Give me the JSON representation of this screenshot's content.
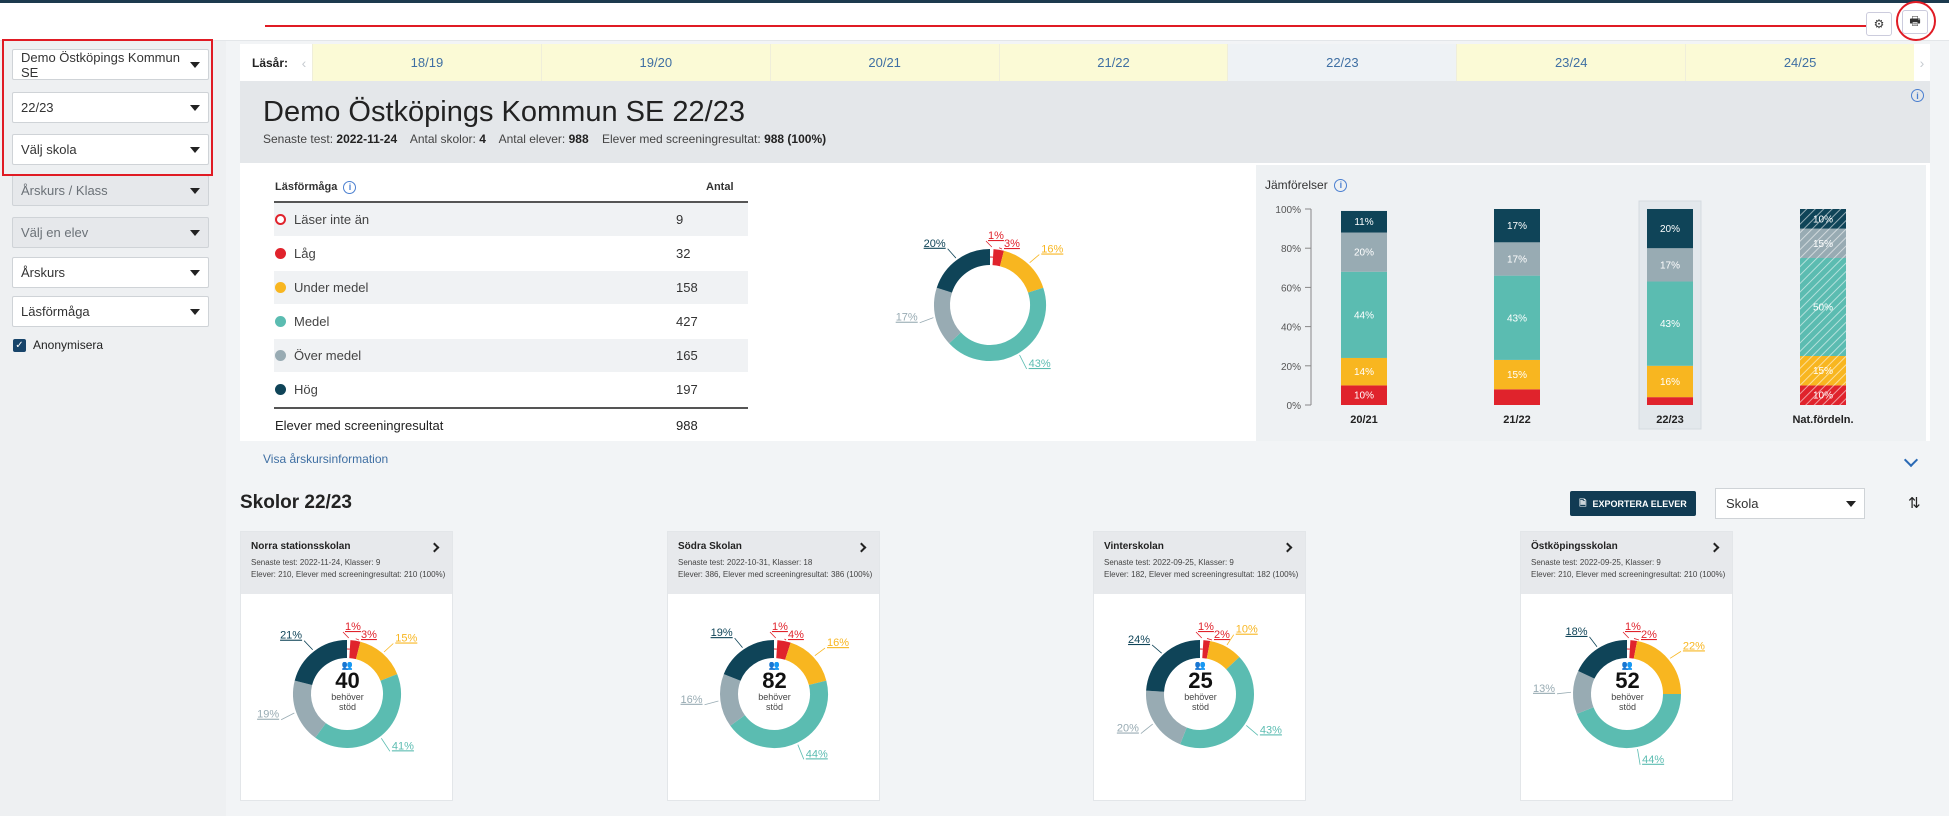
{
  "sidebar": {
    "kommun": "Demo Östköpings Kommun SE",
    "year": "22/23",
    "school": "Välj skola",
    "class": "Årskurs / Klass",
    "student": "Välj en elev",
    "grade": "Årskurs",
    "ability": "Läsförmåga",
    "anonymize": "Anonymisera"
  },
  "years": {
    "label": "Läsår:",
    "items": [
      "18/19",
      "19/20",
      "20/21",
      "21/22",
      "22/23",
      "23/24",
      "24/25"
    ],
    "selected": "22/23"
  },
  "header": {
    "title": "Demo Östköpings Kommun SE 22/23",
    "k1": "Senaste test:",
    "v1": "2022-11-24",
    "k2": "Antal skolor:",
    "v2": "4",
    "k3": "Antal elever:",
    "v3": "988",
    "k4": "Elever med screeningresultat:",
    "v4": "988 (100%)"
  },
  "table": {
    "h1": "Läsförmåga",
    "h2": "Antal",
    "rows": [
      {
        "label": "Läser inte än",
        "value": "9"
      },
      {
        "label": "Låg",
        "value": "32"
      },
      {
        "label": "Under medel",
        "value": "158"
      },
      {
        "label": "Medel",
        "value": "427"
      },
      {
        "label": "Över medel",
        "value": "165"
      },
      {
        "label": "Hög",
        "value": "197"
      }
    ],
    "total_label": "Elever med screeningresultat",
    "total_value": "988"
  },
  "colors": {
    "notyet": "#ffffff",
    "notyet_border": "#e0232c",
    "low": "#e0232c",
    "under": "#f8b620",
    "medel": "#5bbcb1",
    "over": "#98abb3",
    "high": "#0f4458"
  },
  "donut_main": {
    "values": [
      1,
      3,
      16,
      43,
      17,
      20
    ],
    "labels": [
      "1%",
      "3%",
      "16%",
      "43%",
      "17%",
      "20%"
    ]
  },
  "compare": {
    "title": "Jämförelser",
    "yticks": [
      "100%",
      "80%",
      "60%",
      "40%",
      "20%",
      "0%"
    ],
    "categories": [
      "20/21",
      "21/22",
      "22/23",
      "Nat.fördeln."
    ],
    "selected": "22/23"
  },
  "chart_data": {
    "type": "bar",
    "stacked": true,
    "categories": [
      "20/21",
      "21/22",
      "22/23",
      "Nat.fördeln."
    ],
    "ylim": [
      0,
      100
    ],
    "series": [
      {
        "name": "Låg",
        "values": [
          10,
          8,
          4,
          10
        ],
        "labels": [
          "10%",
          "",
          "",
          "10%"
        ]
      },
      {
        "name": "Under medel",
        "values": [
          14,
          15,
          16,
          15
        ],
        "labels": [
          "14%",
          "15%",
          "16%",
          "15%"
        ]
      },
      {
        "name": "Medel",
        "values": [
          44,
          43,
          43,
          50
        ],
        "labels": [
          "44%",
          "43%",
          "43%",
          "50%"
        ]
      },
      {
        "name": "Över medel",
        "values": [
          20,
          17,
          17,
          15
        ],
        "labels": [
          "20%",
          "17%",
          "17%",
          "15%"
        ]
      },
      {
        "name": "Hög",
        "values": [
          11,
          17,
          20,
          10
        ],
        "labels": [
          "11%",
          "17%",
          "20%",
          "10%"
        ]
      }
    ]
  },
  "link": "Visa årskursinformation",
  "schools_title": "Skolor 22/23",
  "export_label": "EXPORTERA ELEVER",
  "sort_select": "Skola",
  "schools": [
    {
      "name": "Norra stationsskolan",
      "line1": "Senaste test: 2022-11-24, Klasser: 9",
      "line2": "Elever: 210, Elever med screeningresultat: 210 (100%)",
      "count": "40",
      "needs": "behöver",
      "stod": "stöd",
      "values": [
        1,
        3,
        15,
        41,
        19,
        21
      ],
      "labels": [
        "1%",
        "3%",
        "15%",
        "41%",
        "19%",
        "21%"
      ]
    },
    {
      "name": "Södra Skolan",
      "line1": "Senaste test: 2022-10-31, Klasser: 18",
      "line2": "Elever: 386, Elever med screeningresultat: 386 (100%)",
      "count": "82",
      "needs": "behöver",
      "stod": "stöd",
      "values": [
        1,
        4,
        16,
        44,
        16,
        19
      ],
      "labels": [
        "1%",
        "4%",
        "16%",
        "44%",
        "16%",
        "19%"
      ]
    },
    {
      "name": "Vinterskolan",
      "line1": "Senaste test: 2022-09-25, Klasser: 9",
      "line2": "Elever: 182, Elever med screeningresultat: 182 (100%)",
      "count": "25",
      "needs": "behöver",
      "stod": "stöd",
      "values": [
        1,
        2,
        10,
        43,
        20,
        24
      ],
      "labels": [
        "1%",
        "2%",
        "10%",
        "43%",
        "20%",
        "24%"
      ]
    },
    {
      "name": "Östköpingsskolan",
      "line1": "Senaste test: 2022-09-25, Klasser: 9",
      "line2": "Elever: 210, Elever med screeningresultat: 210 (100%)",
      "count": "52",
      "needs": "behöver",
      "stod": "stöd",
      "values": [
        1,
        2,
        22,
        44,
        13,
        18
      ],
      "labels": [
        "1%",
        "2%",
        "22%",
        "44%",
        "13%",
        "18%"
      ]
    }
  ]
}
